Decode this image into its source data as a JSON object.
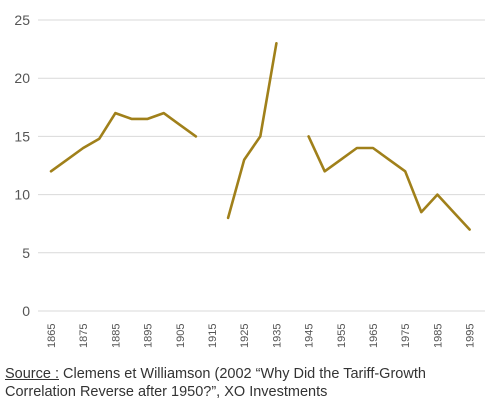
{
  "chart_data": {
    "type": "line",
    "title": "",
    "xlabel": "",
    "ylabel": "",
    "ylim": [
      0,
      25
    ],
    "yticks": [
      "0",
      "5",
      "10",
      "15",
      "20",
      "25"
    ],
    "xticks": [
      "1865",
      "1875",
      "1885",
      "1895",
      "1905",
      "1915",
      "1925",
      "1935",
      "1945",
      "1955",
      "1965",
      "1975",
      "1985",
      "1995"
    ],
    "grid": "horizontal",
    "legend": "none",
    "line_color": "#a0801a",
    "series": [
      {
        "segments": [
          [
            [
              1865,
              12
            ],
            [
              1870,
              13
            ],
            [
              1875,
              14
            ],
            [
              1880,
              14.8
            ],
            [
              1885,
              17
            ],
            [
              1890,
              16.5
            ],
            [
              1895,
              16.5
            ],
            [
              1900,
              17
            ],
            [
              1905,
              16
            ],
            [
              1910,
              15
            ]
          ],
          [
            [
              1920,
              8
            ],
            [
              1925,
              13
            ],
            [
              1930,
              15
            ],
            [
              1935,
              23
            ]
          ],
          [
            [
              1945,
              15
            ],
            [
              1950,
              12
            ],
            [
              1955,
              13
            ],
            [
              1960,
              14
            ],
            [
              1965,
              14
            ],
            [
              1970,
              13
            ],
            [
              1975,
              12
            ],
            [
              1980,
              8.5
            ],
            [
              1985,
              10
            ],
            [
              1990,
              8.5
            ],
            [
              1995,
              7
            ]
          ]
        ]
      }
    ]
  },
  "source": {
    "label": "Source :",
    "text": " Clemens et Williamson (2002 “Why Did the Tariff-Growth Correlation Reverse after 1950?”, XO Investments"
  }
}
